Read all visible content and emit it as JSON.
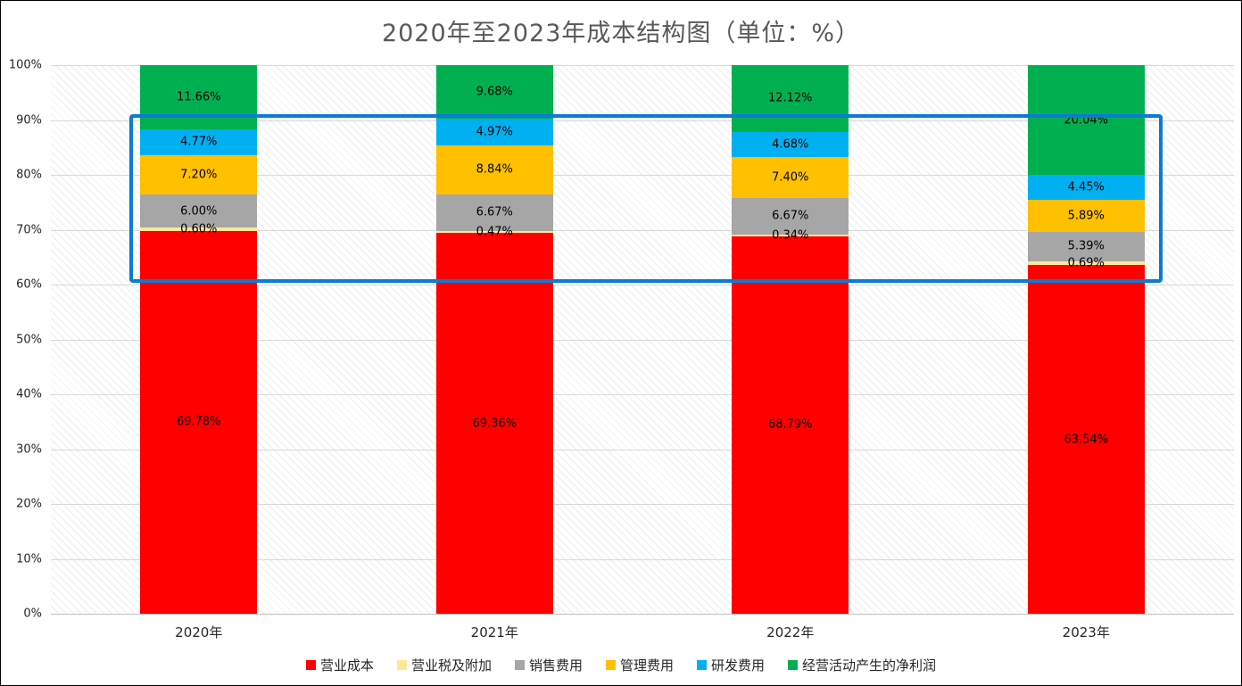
{
  "title": "2020年至2023年成本结构图（单位：%）",
  "chart_data": {
    "type": "bar",
    "stacked": true,
    "title": "2020年至2023年成本结构图（单位：%）",
    "xlabel": "",
    "ylabel": "",
    "ylim": [
      0,
      100
    ],
    "grid": true,
    "legend_position": "bottom",
    "y_ticks": [
      "100%",
      "90%",
      "80%",
      "70%",
      "60%",
      "50%",
      "40%",
      "30%",
      "20%",
      "10%",
      "0%"
    ],
    "categories": [
      "2020年",
      "2021年",
      "2022年",
      "2023年"
    ],
    "series": [
      {
        "name": "营业成本",
        "color": "#FF0000",
        "values": [
          69.78,
          69.36,
          68.79,
          63.54
        ]
      },
      {
        "name": "营业税及附加",
        "color": "#FFE699",
        "values": [
          0.6,
          0.47,
          0.34,
          0.69
        ]
      },
      {
        "name": "销售费用",
        "color": "#A6A6A6",
        "values": [
          6.0,
          6.67,
          6.67,
          5.39
        ]
      },
      {
        "name": "管理费用",
        "color": "#FFC000",
        "values": [
          7.2,
          8.84,
          7.4,
          5.89
        ]
      },
      {
        "name": "研发费用",
        "color": "#00B0F0",
        "values": [
          4.77,
          4.97,
          4.68,
          4.45
        ]
      },
      {
        "name": "经营活动产生的净利润",
        "color": "#00B050",
        "values": [
          11.66,
          9.68,
          12.12,
          20.04
        ]
      }
    ],
    "data_label_suffix": "%"
  },
  "annotation": {
    "type": "highlight-rectangle",
    "color": "#0B7BD4"
  }
}
